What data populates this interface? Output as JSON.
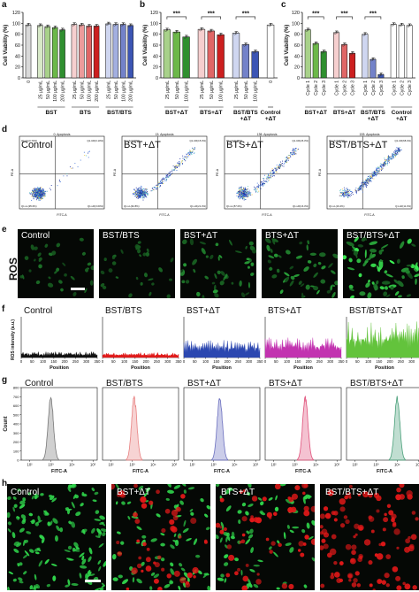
{
  "panels": {
    "a": "a",
    "b": "b",
    "c": "c",
    "d": "d",
    "e": "e",
    "f": "f",
    "g": "g",
    "h": "h"
  },
  "chart_data": [
    {
      "type": "bar",
      "panel": "a",
      "ylabel": "Cell Viability (%)",
      "ylim": [
        0,
        120
      ],
      "yticks": [
        "0",
        "20",
        "40",
        "60",
        "80",
        "100",
        "120"
      ],
      "categories": [
        "0",
        "25 μg/mL",
        "50 μg/mL",
        "100 μg/mL",
        "200 μg/mL",
        "25 μg/mL",
        "50 μg/mL",
        "100 μg/mL",
        "200 μg/mL",
        "25 μg/mL",
        "50 μg/mL",
        "100 μg/mL",
        "200 μg/mL"
      ],
      "groups": [
        "BST",
        "BTS",
        "BST/BTS"
      ],
      "values": [
        97,
        96,
        94,
        92,
        88,
        98,
        97,
        95,
        95,
        99,
        98,
        98,
        96
      ],
      "colors": [
        "#d9d9d9",
        "#d7e8c7",
        "#a8d18a",
        "#6cb849",
        "#2f8f2f",
        "#f6cfcf",
        "#ec9b9b",
        "#e06666",
        "#cc1f1f",
        "#cfd6f0",
        "#a3afe0",
        "#7382c9",
        "#3c55b4"
      ]
    },
    {
      "type": "bar",
      "panel": "b",
      "ylabel": "Cell Viability (%)",
      "ylim": [
        0,
        120
      ],
      "yticks": [
        "0",
        "20",
        "40",
        "60",
        "80",
        "100",
        "120"
      ],
      "categories": [
        "25 μg/mL",
        "50 μg/mL",
        "100 μg/mL",
        "25 μg/mL",
        "50 μg/mL",
        "100 μg/mL",
        "25 μg/mL",
        "50 μg/mL",
        "100 μg/mL",
        "0"
      ],
      "groups": [
        "BST+ΔT",
        "BTS+ΔT",
        "BST/BTS +ΔT",
        "Control +ΔT"
      ],
      "values": [
        88,
        84,
        75,
        89,
        86,
        79,
        82,
        61,
        48,
        97
      ],
      "colors": [
        "#a8d18a",
        "#6cb849",
        "#2f8f2f",
        "#f6cfcf",
        "#e06666",
        "#cc1f1f",
        "#cfd6f0",
        "#7382c9",
        "#3c55b4",
        "#ffffff"
      ],
      "significance": "***"
    },
    {
      "type": "bar",
      "panel": "c",
      "ylabel": "Cell Viability (%)",
      "ylim": [
        0,
        120
      ],
      "yticks": [
        "0",
        "20",
        "40",
        "60",
        "80",
        "100",
        "120"
      ],
      "categories": [
        "Cycle 1",
        "Cycle 2",
        "Cycle 3",
        "Cycle 1",
        "Cycle 2",
        "Cycle 3",
        "Cycle 1",
        "Cycle 2",
        "Cycle 3",
        "Cycle 1",
        "Cycle 2",
        "Cycle 3"
      ],
      "groups": [
        "BST+ΔT",
        "BTS+ΔT",
        "BST/BTS +ΔT",
        "Control +ΔT"
      ],
      "values": [
        88,
        63,
        48,
        83,
        61,
        45,
        80,
        34,
        6,
        98,
        97,
        96
      ],
      "colors": [
        "#a8d18a",
        "#6cb849",
        "#2f8f2f",
        "#f6cfcf",
        "#e06666",
        "#cc1f1f",
        "#cfd6f0",
        "#7382c9",
        "#3c55b4",
        "#ffffff",
        "#ffffff",
        "#ffffff"
      ],
      "significance": "***"
    },
    {
      "type": "area",
      "panel": "f",
      "ylabel": "ROS intensity (a.u.)",
      "xlabel": "Position",
      "xticks": [
        "0",
        "50",
        "100",
        "150",
        "200",
        "250",
        "300",
        "350"
      ],
      "series": [
        {
          "name": "Control",
          "color": "#111111",
          "level": 0.14
        },
        {
          "name": "BST/BTS",
          "color": "#e01a1a",
          "level": 0.12
        },
        {
          "name": "BST+ΔT",
          "color": "#2b47b0",
          "level": 0.42
        },
        {
          "name": "BTS+ΔT",
          "color": "#c233b0",
          "level": 0.48
        },
        {
          "name": "BST/BTS+ΔT",
          "color": "#63c33c",
          "level": 0.85
        }
      ]
    },
    {
      "type": "area",
      "panel": "g",
      "ylabel": "Count",
      "xlabel": "FITC-A",
      "yticks": [
        "0",
        "100",
        "200",
        "300",
        "400",
        "500",
        "600",
        "700",
        "800"
      ],
      "xticks": [
        "10²",
        "10³",
        "10⁴",
        "10⁵"
      ],
      "series": [
        {
          "name": "Control",
          "color": "#777777",
          "peak_log10": 3.0
        },
        {
          "name": "BST/BTS",
          "color": "#e88080",
          "peak_log10": 3.1
        },
        {
          "name": "BST+ΔT",
          "color": "#6b6fbf",
          "peak_log10": 3.3
        },
        {
          "name": "BTS+ΔT",
          "color": "#e0507a",
          "peak_log10": 3.5
        },
        {
          "name": "BST/BTS+ΔT",
          "color": "#4aa07a",
          "peak_log10": 4.0
        }
      ]
    }
  ],
  "d": {
    "plots": [
      {
        "title": "Control",
        "header": "0: Apoptosis",
        "q1": "Q1-UL(0.70%)",
        "q2": "Q1-UR(0.10%)",
        "q3": "Q1-LL(95.6%)",
        "q4": "Q1-LR(3.60%)",
        "apop": 0.04
      },
      {
        "title": "BST+ΔT",
        "header": "13: Apoptosis",
        "q1": "Q1-UL(0.59%)",
        "q2": "Q1-UR(15.3%)",
        "q3": "Q1-LL(62.8%)",
        "q4": "Q1-LR(21.3%)",
        "apop": 0.36
      },
      {
        "title": "BTS+ΔT",
        "header": "138: Apoptosis",
        "q1": "Q1-UL(0.38%)",
        "q2": "Q1-UR(26.3%)",
        "q3": "Q1-LL(57.0%)",
        "q4": "Q1-LR(16.3%)",
        "apop": 0.42
      },
      {
        "title": "BST/BTS+ΔT",
        "header": "153: Apoptosis",
        "q1": "Q1-UL(0.84%)",
        "q2": "Q1-UR(68.4%)",
        "q3": "Q1-LL(19.4%)",
        "q4": "Q1-LR(11.3%)",
        "apop": 0.8
      }
    ],
    "ylabel": "PE-A",
    "xlabel": "FITC-A"
  },
  "e": {
    "side_label": "ROS",
    "images": [
      {
        "title": "Control",
        "intensity": 0.25,
        "hue": "green"
      },
      {
        "title": "BST/BTS",
        "intensity": 0.2,
        "hue": "green"
      },
      {
        "title": "BST+ΔT",
        "intensity": 0.5,
        "hue": "green"
      },
      {
        "title": "BTS+ΔT",
        "intensity": 0.55,
        "hue": "green"
      },
      {
        "title": "BST/BTS+ΔT",
        "intensity": 0.95,
        "hue": "green"
      }
    ]
  },
  "f_titles": [
    "Control",
    "BST/BTS",
    "BST+ΔT",
    "BTS+ΔT",
    "BST/BTS+ΔT"
  ],
  "g_titles": [
    "Control",
    "BST/BTS",
    "BST+ΔT",
    "BTS+ΔT",
    "BST/BTS+ΔT"
  ],
  "h": {
    "images": [
      {
        "title": "Control",
        "green": 1.0,
        "red": 0.0
      },
      {
        "title": "BST+ΔT",
        "green": 0.6,
        "red": 0.45
      },
      {
        "title": "BTS+ΔT",
        "green": 0.55,
        "red": 0.5
      },
      {
        "title": "BST/BTS+ΔT",
        "green": 0.0,
        "red": 1.0
      }
    ]
  },
  "colors": {
    "ros_green": "#3fcf58",
    "dead_red": "#e01818",
    "live_green": "#2fd24a",
    "sig_line": "#111111"
  }
}
